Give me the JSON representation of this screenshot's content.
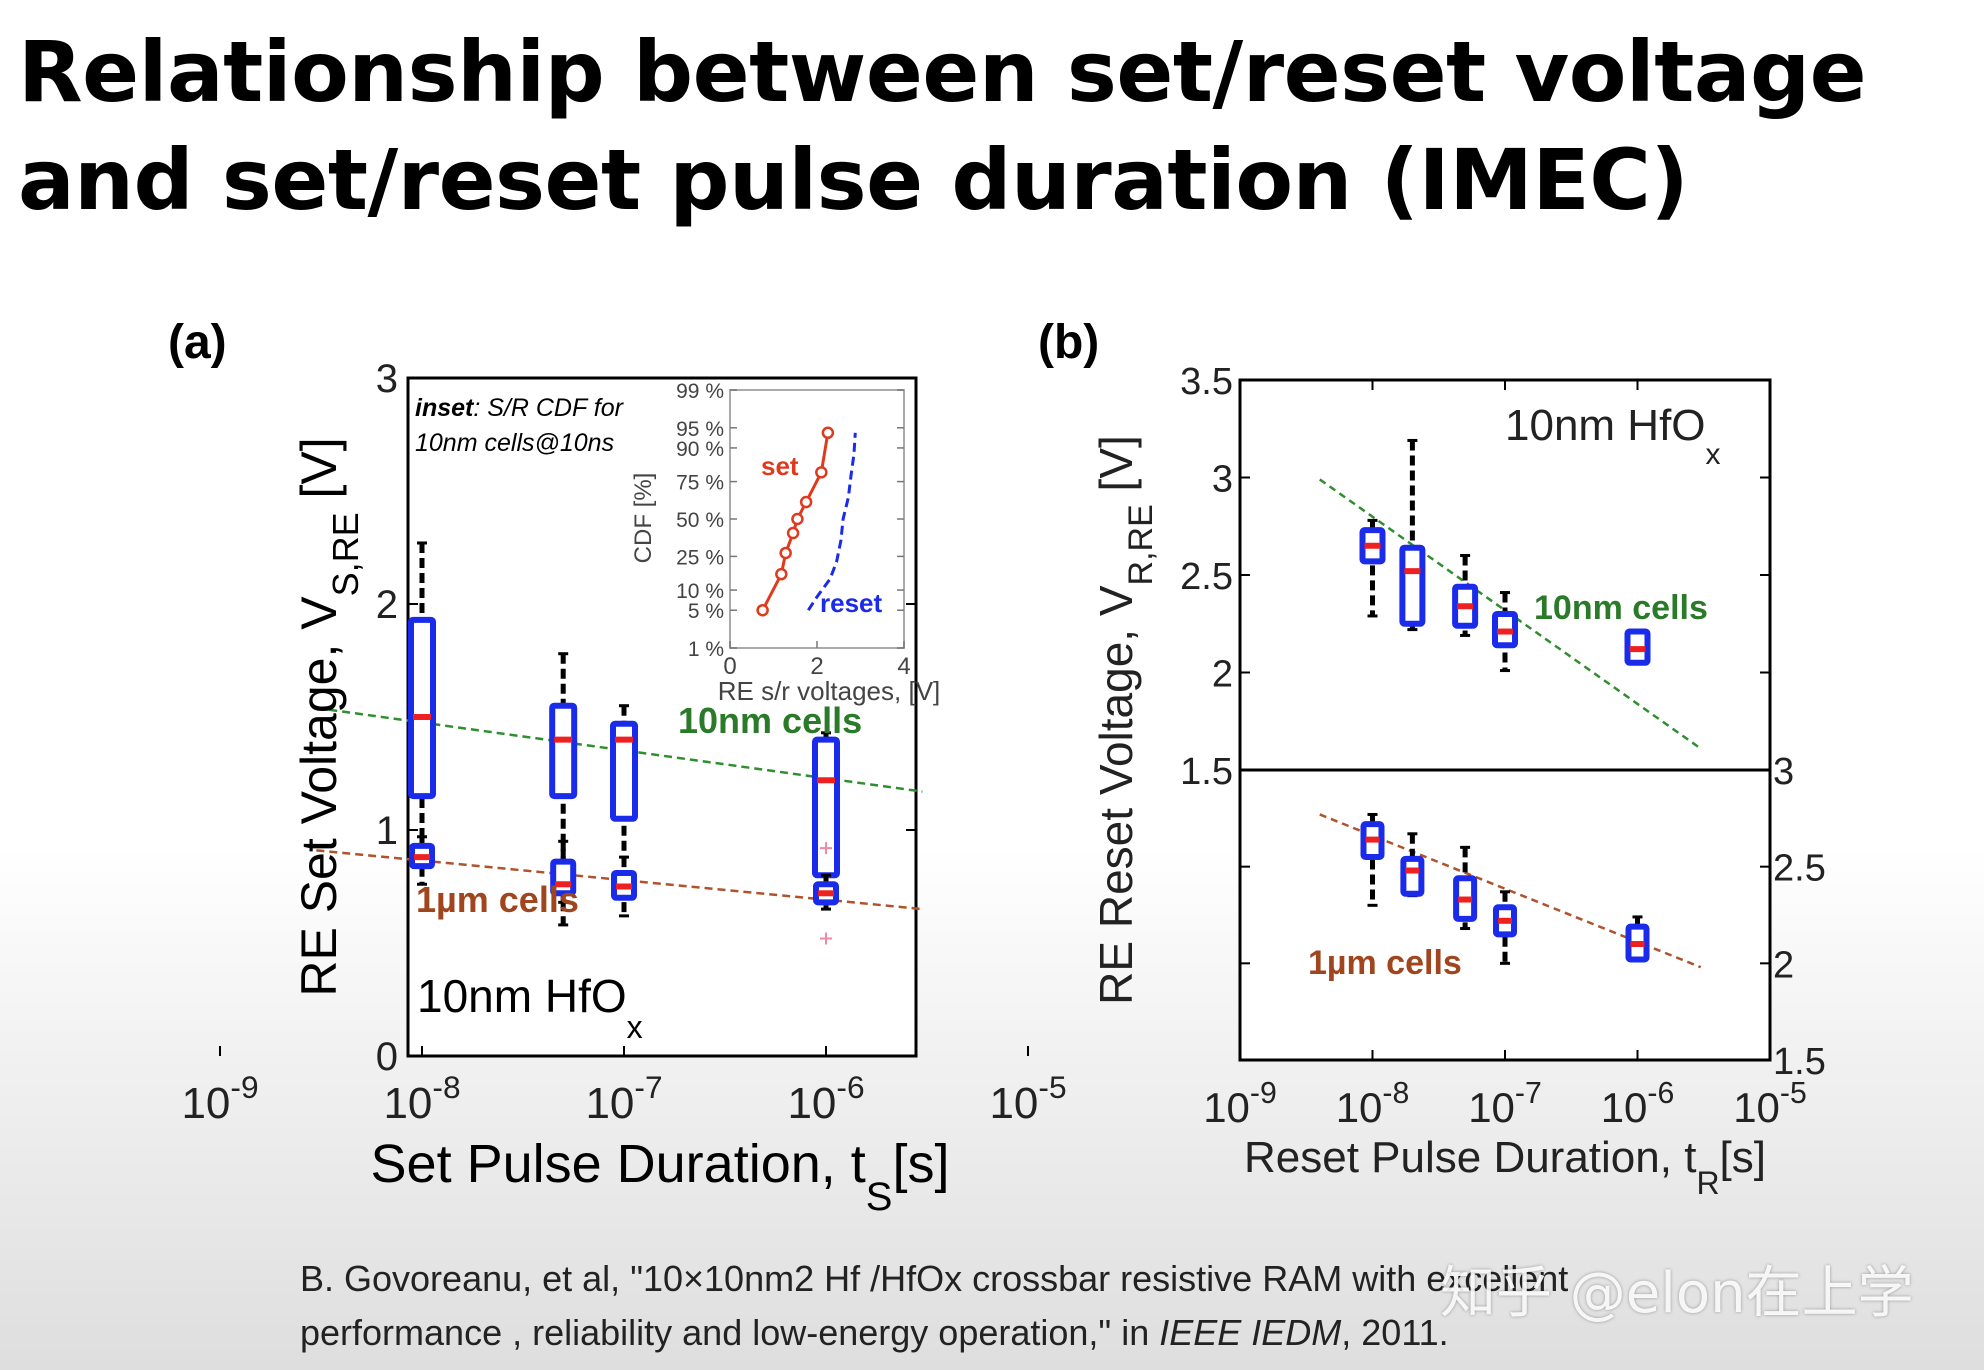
{
  "slide": {
    "title_line1": "Relationship between set/reset voltage",
    "title_line2": "and set/reset pulse duration (IMEC)"
  },
  "reference": {
    "line1": "B. Govoreanu, et al, \"10×10nm2 Hf /HfOx crossbar resistive RAM with excellent",
    "line2_pre": "performance , reliability and low-energy operation,\" in ",
    "line2_venue": "IEEE IEDM",
    "line2_post": ", 2011."
  },
  "watermark": "知乎 @elon在上学",
  "colors": {
    "box_blue": "#1b2bea",
    "median_red": "#ee2020",
    "whisker": "#000000",
    "fit_10nm": "#2f8f2f",
    "fit_1um": "#b0522c",
    "label_10nm": "#2a7a2a",
    "label_1um": "#a0461e",
    "inset_set": "#e03a1e",
    "inset_reset": "#1b2bea"
  },
  "chart_data": [
    {
      "type": "box",
      "panel_label": "(a)",
      "xlabel_main": "Set Pulse Duration, t",
      "xlabel_sub": "S",
      "xlabel_post": "[s]",
      "ylabel_main": "RE Set Voltage, V",
      "ylabel_sub": "S,RE",
      "ylabel_post": " [V]",
      "x_scale": "log",
      "xlim": [
        1e-09,
        1e-05
      ],
      "ylim": [
        0,
        3
      ],
      "x_ticks": [
        {
          "value": 1e-09,
          "label": "10",
          "exp": "-9"
        },
        {
          "value": 1e-08,
          "label": "10",
          "exp": "-8"
        },
        {
          "value": 1e-07,
          "label": "10",
          "exp": "-7"
        },
        {
          "value": 1e-06,
          "label": "10",
          "exp": "-6"
        },
        {
          "value": 1e-05,
          "label": "10",
          "exp": "-5"
        }
      ],
      "y_ticks": [
        {
          "value": 0,
          "label": "0"
        },
        {
          "value": 1,
          "label": "1"
        },
        {
          "value": 2,
          "label": "2"
        },
        {
          "value": 3,
          "label": "3"
        }
      ],
      "material_label": "10nm HfO",
      "material_sub": "x",
      "series": [
        {
          "name": "10nm cells",
          "boxes": [
            {
              "x": 1e-08,
              "whisker_low": 0.9,
              "q1": 1.15,
              "median": 1.5,
              "q3": 1.93,
              "whisker_high": 2.27
            },
            {
              "x": 5e-08,
              "whisker_low": 0.68,
              "q1": 1.15,
              "median": 1.4,
              "q3": 1.55,
              "whisker_high": 1.78
            },
            {
              "x": 1e-07,
              "whisker_low": 0.72,
              "q1": 1.05,
              "median": 1.4,
              "q3": 1.47,
              "whisker_high": 1.55
            },
            {
              "x": 1e-06,
              "whisker_low": 0.68,
              "q1": 0.8,
              "median": 1.22,
              "q3": 1.4,
              "whisker_high": 1.43
            }
          ],
          "fit": {
            "x": [
              3e-09,
              3e-06
            ],
            "y": [
              1.54,
              1.17
            ]
          }
        },
        {
          "name": "1µm cells",
          "boxes": [
            {
              "x": 1e-08,
              "whisker_low": 0.76,
              "q1": 0.84,
              "median": 0.88,
              "q3": 0.93,
              "whisker_high": 0.97
            },
            {
              "x": 5e-08,
              "whisker_low": 0.58,
              "q1": 0.72,
              "median": 0.76,
              "q3": 0.86,
              "whisker_high": 0.95
            },
            {
              "x": 1e-07,
              "whisker_low": 0.62,
              "q1": 0.7,
              "median": 0.75,
              "q3": 0.81,
              "whisker_high": 0.88
            },
            {
              "x": 1e-06,
              "whisker_low": 0.65,
              "q1": 0.68,
              "median": 0.72,
              "q3": 0.76,
              "whisker_high": 0.8
            }
          ],
          "fit": {
            "x": [
              3e-09,
              3e-06
            ],
            "y": [
              0.91,
              0.65
            ]
          }
        }
      ],
      "outliers": [
        {
          "x": 1e-06,
          "y": 0.52
        },
        {
          "x": 1e-06,
          "y": 0.92
        }
      ],
      "inset": {
        "caption_bold": "inset",
        "caption_line1": ": S/R CDF for",
        "caption_line2": "10nm cells@10ns",
        "xlabel": "RE s/r voltages, [V]",
        "ylabel": "CDF [%]",
        "xlim": [
          0,
          4
        ],
        "x_ticks": [
          {
            "value": 0,
            "label": "0"
          },
          {
            "value": 2,
            "label": "2"
          },
          {
            "value": 4,
            "label": "4"
          }
        ],
        "y_ticks": [
          {
            "value": 1,
            "label": "1 %"
          },
          {
            "value": 5,
            "label": "5 %"
          },
          {
            "value": 10,
            "label": "10 %"
          },
          {
            "value": 25,
            "label": "25 %"
          },
          {
            "value": 50,
            "label": "50 %"
          },
          {
            "value": 75,
            "label": "75 %"
          },
          {
            "value": 90,
            "label": "90 %"
          },
          {
            "value": 95,
            "label": "95 %"
          },
          {
            "value": 99,
            "label": "99 %"
          }
        ],
        "series": [
          {
            "name": "set",
            "x": [
              0.75,
              1.18,
              1.28,
              1.45,
              1.55,
              1.75,
              2.1,
              2.25
            ],
            "y": [
              5,
              16,
              27,
              40,
              50,
              62,
              80,
              94
            ]
          },
          {
            "name": "reset",
            "x": [
              1.8,
              2.0,
              2.3,
              2.45,
              2.55,
              2.6,
              2.72,
              2.78,
              2.85,
              2.88
            ],
            "y": [
              5,
              8,
              14,
              22,
              35,
              50,
              65,
              78,
              88,
              94
            ]
          }
        ]
      }
    },
    {
      "type": "box",
      "panel_label": "(b)",
      "xlabel_main": "Reset Pulse Duration, t",
      "xlabel_sub": "R",
      "xlabel_post": "[s]",
      "ylabel_main": "RE Reset Voltage, V",
      "ylabel_sub": "R,RE",
      "ylabel_post": " [V]",
      "x_scale": "log",
      "xlim": [
        1e-09,
        1e-05
      ],
      "x_ticks": [
        {
          "value": 1e-09,
          "label": "10",
          "exp": "-9"
        },
        {
          "value": 1e-08,
          "label": "10",
          "exp": "-8"
        },
        {
          "value": 1e-07,
          "label": "10",
          "exp": "-7"
        },
        {
          "value": 1e-06,
          "label": "10",
          "exp": "-6"
        },
        {
          "value": 1e-05,
          "label": "10",
          "exp": "-5"
        }
      ],
      "subplots": [
        {
          "name": "10nm cells",
          "ylim": [
            1.5,
            3.5
          ],
          "y_axis_side": "left",
          "y_ticks": [
            {
              "value": 1.5,
              "label": "1.5"
            },
            {
              "value": 2,
              "label": "2"
            },
            {
              "value": 2.5,
              "label": "2.5"
            },
            {
              "value": 3,
              "label": "3"
            },
            {
              "value": 3.5,
              "label": "3.5"
            }
          ],
          "material_label": "10nm HfO",
          "material_sub": "x",
          "boxes": [
            {
              "x": 1e-08,
              "whisker_low": 2.29,
              "q1": 2.57,
              "median": 2.65,
              "q3": 2.73,
              "whisker_high": 2.78
            },
            {
              "x": 2e-08,
              "whisker_low": 2.22,
              "q1": 2.25,
              "median": 2.52,
              "q3": 2.64,
              "whisker_high": 3.19
            },
            {
              "x": 5e-08,
              "whisker_low": 2.19,
              "q1": 2.24,
              "median": 2.34,
              "q3": 2.44,
              "whisker_high": 2.6
            },
            {
              "x": 1e-07,
              "whisker_low": 2.01,
              "q1": 2.14,
              "median": 2.21,
              "q3": 2.3,
              "whisker_high": 2.41
            },
            {
              "x": 1e-06,
              "whisker_low": 2.05,
              "q1": 2.05,
              "median": 2.12,
              "q3": 2.21,
              "whisker_high": 2.21
            }
          ],
          "fit": {
            "x": [
              4e-09,
              3e-06
            ],
            "y": [
              2.99,
              1.61
            ]
          }
        },
        {
          "name": "1µm cells",
          "ylim": [
            1.5,
            3
          ],
          "y_axis_side": "right",
          "y_ticks": [
            {
              "value": 1.5,
              "label": "1.5"
            },
            {
              "value": 2,
              "label": "2"
            },
            {
              "value": 2.5,
              "label": "2.5"
            },
            {
              "value": 3,
              "label": "3"
            }
          ],
          "boxes": [
            {
              "x": 1e-08,
              "whisker_low": 2.3,
              "q1": 2.55,
              "median": 2.64,
              "q3": 2.72,
              "whisker_high": 2.77
            },
            {
              "x": 2e-08,
              "whisker_low": 2.35,
              "q1": 2.36,
              "median": 2.48,
              "q3": 2.54,
              "whisker_high": 2.67
            },
            {
              "x": 5e-08,
              "whisker_low": 2.18,
              "q1": 2.23,
              "median": 2.33,
              "q3": 2.44,
              "whisker_high": 2.6
            },
            {
              "x": 1e-07,
              "whisker_low": 2.0,
              "q1": 2.15,
              "median": 2.22,
              "q3": 2.29,
              "whisker_high": 2.37
            },
            {
              "x": 1e-06,
              "whisker_low": 2.02,
              "q1": 2.02,
              "median": 2.1,
              "q3": 2.19,
              "whisker_high": 2.24
            }
          ],
          "fit": {
            "x": [
              4e-09,
              3e-06
            ],
            "y": [
              2.77,
              1.98
            ]
          }
        }
      ]
    }
  ]
}
